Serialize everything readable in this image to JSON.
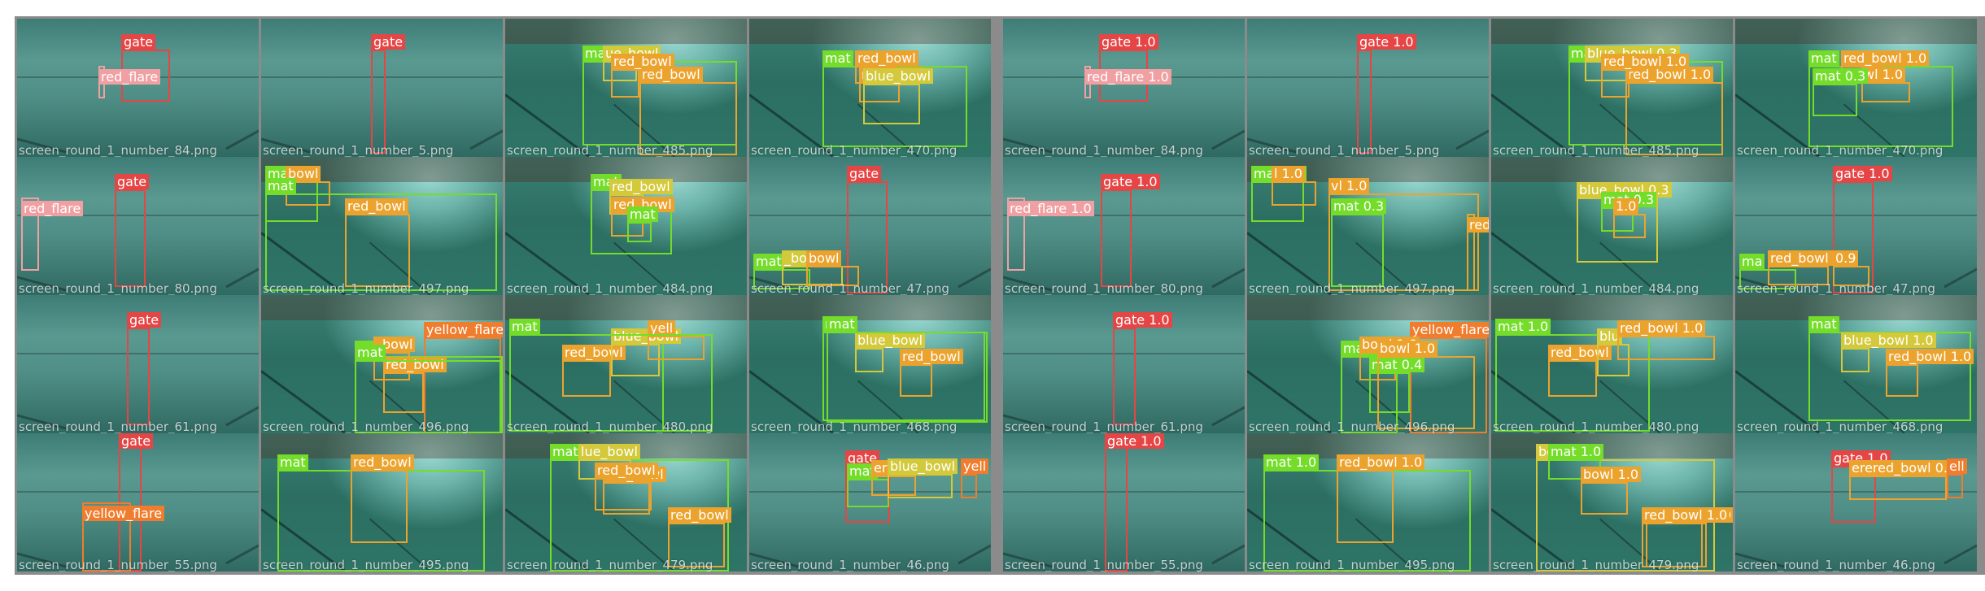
{
  "colors": {
    "gate": "#e64545",
    "red_flare": "#f0a0a3",
    "mat": "#74dd2a",
    "blue_bowl": "#d3c93a",
    "red_bowl": "#eca32e",
    "yellow_flare": "#f07c2e",
    "water": "#2f6e66"
  },
  "panels": {
    "labels": {
      "tiles": [
        {
          "filename": "screen_round_1_number_84.png",
          "scene": "pool",
          "objects": [
            {
              "cls": "gate",
              "label": "gate"
            },
            {
              "cls": "red_flare",
              "label": "red_flare"
            }
          ]
        },
        {
          "filename": "screen_round_1_number_5.png",
          "scene": "pool",
          "objects": [
            {
              "cls": "gate",
              "label": "gate"
            }
          ]
        },
        {
          "filename": "screen_round_1_number_485.png",
          "scene": "tiled",
          "objects": [
            {
              "cls": "mat",
              "label": "mat"
            },
            {
              "cls": "blue_bowl",
              "label": "ue_bowl"
            },
            {
              "cls": "red_bowl",
              "label": "red_bowl"
            },
            {
              "cls": "red_bowl",
              "label": "red_bowl"
            }
          ]
        },
        {
          "filename": "screen_round_1_number_470.png",
          "scene": "tiled",
          "objects": [
            {
              "cls": "mat",
              "label": "mat"
            },
            {
              "cls": "red_bowl",
              "label": "red_bowl"
            },
            {
              "cls": "red_bowl",
              "label": "red_bowl"
            },
            {
              "cls": "blue_bowl",
              "label": "blue_bowl"
            }
          ]
        },
        {
          "filename": "screen_round_1_number_80.png",
          "scene": "pool",
          "objects": [
            {
              "cls": "red_flare",
              "label": "red_flare"
            },
            {
              "cls": "gate",
              "label": "gate"
            }
          ]
        },
        {
          "filename": "screen_round_1_number_497.png",
          "scene": "tiled",
          "objects": [
            {
              "cls": "mat",
              "label": "mat"
            },
            {
              "cls": "red_bowl",
              "label": "bowl"
            },
            {
              "cls": "red_bowl",
              "label": "red_bowl"
            },
            {
              "cls": "mat",
              "label": "mat"
            }
          ]
        },
        {
          "filename": "screen_round_1_number_484.png",
          "scene": "tiled",
          "objects": [
            {
              "cls": "mat",
              "label": "mat"
            },
            {
              "cls": "blue_bowl",
              "label": "red_bowl"
            },
            {
              "cls": "red_bowl",
              "label": "red_bowl"
            },
            {
              "cls": "mat",
              "label": "mat"
            }
          ]
        },
        {
          "filename": "screen_round_1_number_47.png",
          "scene": "pool",
          "objects": [
            {
              "cls": "gate",
              "label": "gate"
            },
            {
              "cls": "mat",
              "label": "mat"
            },
            {
              "cls": "blue_bowl",
              "label": "_bowl"
            },
            {
              "cls": "red_bowl",
              "label": "bowl"
            }
          ]
        },
        {
          "filename": "screen_round_1_number_61.png",
          "scene": "pool",
          "objects": [
            {
              "cls": "gate",
              "label": "gate"
            }
          ]
        },
        {
          "filename": "screen_round_1_number_496.png",
          "scene": "tiled",
          "objects": [
            {
              "cls": "yellow_flare",
              "label": "yellow_flare"
            },
            {
              "cls": "mat",
              "label": "mat"
            },
            {
              "cls": "red_bowl",
              "label": "_bowl"
            },
            {
              "cls": "red_bowl",
              "label": "red_bowl"
            },
            {
              "cls": "mat",
              "label": "mat"
            }
          ]
        },
        {
          "filename": "screen_round_1_number_480.png",
          "scene": "tiled",
          "objects": [
            {
              "cls": "mat",
              "label": "mat"
            },
            {
              "cls": "red_bowl",
              "label": "red_bowl"
            },
            {
              "cls": "blue_bowl",
              "label": "blue_bowl"
            },
            {
              "cls": "red_bowl",
              "label": "yell"
            },
            {
              "cls": "mat",
              "label": "mat"
            }
          ]
        },
        {
          "filename": "screen_round_1_number_468.png",
          "scene": "tiled",
          "objects": [
            {
              "cls": "mat",
              "label": "mat"
            },
            {
              "cls": "blue_bowl",
              "label": "blue_bowl"
            },
            {
              "cls": "red_bowl",
              "label": "red_bowl"
            },
            {
              "cls": "mat",
              "label": "mat"
            }
          ]
        },
        {
          "filename": "screen_round_1_number_55.png",
          "scene": "pool",
          "objects": [
            {
              "cls": "gate",
              "label": "gate"
            },
            {
              "cls": "yellow_flare",
              "label": "yellow_flare"
            }
          ]
        },
        {
          "filename": "screen_round_1_number_495.png",
          "scene": "tiled",
          "objects": [
            {
              "cls": "mat",
              "label": "mat"
            },
            {
              "cls": "red_bowl",
              "label": "red_bowl"
            }
          ]
        },
        {
          "filename": "screen_round_1_number_479.png",
          "scene": "tiled",
          "objects": [
            {
              "cls": "mat",
              "label": "mat"
            },
            {
              "cls": "blue_bowl",
              "label": "lue_bowl"
            },
            {
              "cls": "red_bowl",
              "label": "red_bowl"
            },
            {
              "cls": "red_bowl",
              "label": "red_bowl"
            },
            {
              "cls": "red_bowl",
              "label": "red_bowl"
            }
          ]
        },
        {
          "filename": "screen_round_1_number_46.png",
          "scene": "pool",
          "objects": [
            {
              "cls": "gate",
              "label": "gate"
            },
            {
              "cls": "mat",
              "label": "mat"
            },
            {
              "cls": "red_bowl",
              "label": "ere"
            },
            {
              "cls": "blue_bowl",
              "label": "blue_bowl"
            },
            {
              "cls": "yellow_flare",
              "label": "yell"
            }
          ]
        }
      ]
    },
    "predictions": {
      "tiles": [
        {
          "filename": "screen_round_1_number_84.png",
          "scene": "pool",
          "objects": [
            {
              "cls": "gate",
              "label": "gate 1.0"
            },
            {
              "cls": "red_flare",
              "label": "red_flare 1.0"
            }
          ]
        },
        {
          "filename": "screen_round_1_number_5.png",
          "scene": "pool",
          "objects": [
            {
              "cls": "gate",
              "label": "gate 1.0"
            }
          ]
        },
        {
          "filename": "screen_round_1_number_485.png",
          "scene": "tiled",
          "objects": [
            {
              "cls": "mat",
              "label": "ma"
            },
            {
              "cls": "blue_bowl",
              "label": "blue_bowl 0.3"
            },
            {
              "cls": "red_bowl",
              "label": "red_bowl 1.0"
            },
            {
              "cls": "red_bowl",
              "label": "red_bowl 1.0"
            }
          ]
        },
        {
          "filename": "screen_round_1_number_470.png",
          "scene": "tiled",
          "objects": [
            {
              "cls": "mat",
              "label": "mat"
            },
            {
              "cls": "red_bowl",
              "label": "red_bowl 1.0"
            },
            {
              "cls": "red_bowl",
              "label": "wl 1.0"
            },
            {
              "cls": "mat",
              "label": "mat 0.3"
            }
          ]
        },
        {
          "filename": "screen_round_1_number_80.png",
          "scene": "pool",
          "objects": [
            {
              "cls": "red_flare",
              "label": "red_flare 1.0"
            },
            {
              "cls": "gate",
              "label": "gate 1.0"
            }
          ]
        },
        {
          "filename": "screen_round_1_number_497.png",
          "scene": "tiled",
          "objects": [
            {
              "cls": "mat",
              "label": "mat 0.9"
            },
            {
              "cls": "red_bowl",
              "label": "l 1.0"
            },
            {
              "cls": "mat",
              "label": "mat 0.3"
            },
            {
              "cls": "red_bowl",
              "label": "vl 1.0"
            },
            {
              "cls": "red_bowl",
              "label": "red_bowl 0.3"
            }
          ]
        },
        {
          "filename": "screen_round_1_number_484.png",
          "scene": "tiled",
          "objects": [
            {
              "cls": "blue_bowl",
              "label": "blue_bowl 0.3"
            },
            {
              "cls": "mat",
              "label": "mat 0.3"
            },
            {
              "cls": "red_bowl",
              "label": "1.0"
            }
          ]
        },
        {
          "filename": "screen_round_1_number_47.png",
          "scene": "pool",
          "objects": [
            {
              "cls": "gate",
              "label": "gate 1.0"
            },
            {
              "cls": "mat",
              "label": "ma"
            },
            {
              "cls": "red_bowl",
              "label": "red_bowl 0.4"
            },
            {
              "cls": "red_bowl",
              "label": "0.9"
            }
          ]
        },
        {
          "filename": "screen_round_1_number_61.png",
          "scene": "pool",
          "objects": [
            {
              "cls": "gate",
              "label": "gate 1.0"
            }
          ]
        },
        {
          "filename": "screen_round_1_number_496.png",
          "scene": "tiled",
          "objects": [
            {
              "cls": "yellow_flare",
              "label": "yellow_flare 0.9"
            },
            {
              "cls": "mat",
              "label": "mat 1.0"
            },
            {
              "cls": "red_bowl",
              "label": "bowl 1.0"
            },
            {
              "cls": "mat",
              "label": "mat 0.4"
            },
            {
              "cls": "red_bowl",
              "label": "bowl 1.0"
            }
          ]
        },
        {
          "filename": "screen_round_1_number_480.png",
          "scene": "tiled",
          "objects": [
            {
              "cls": "mat",
              "label": "mat 1.0"
            },
            {
              "cls": "red_bowl",
              "label": "red_bowl"
            },
            {
              "cls": "blue_bowl",
              "label": "blu"
            },
            {
              "cls": "red_bowl",
              "label": "red_bowl 1.0"
            }
          ]
        },
        {
          "filename": "screen_round_1_number_468.png",
          "scene": "tiled",
          "objects": [
            {
              "cls": "mat",
              "label": "mat"
            },
            {
              "cls": "blue_bowl",
              "label": "blue_bowl 1.0"
            },
            {
              "cls": "red_bowl",
              "label": "red_bowl 1.0"
            }
          ]
        },
        {
          "filename": "screen_round_1_number_55.png",
          "scene": "pool",
          "objects": [
            {
              "cls": "gate",
              "label": "gate 1.0"
            }
          ]
        },
        {
          "filename": "screen_round_1_number_495.png",
          "scene": "tiled",
          "objects": [
            {
              "cls": "mat",
              "label": "mat 1.0"
            },
            {
              "cls": "red_bowl",
              "label": "red_bowl 1.0"
            }
          ]
        },
        {
          "filename": "screen_round_1_number_479.png",
          "scene": "tiled",
          "objects": [
            {
              "cls": "blue_bowl",
              "label": "bowl 1.0"
            },
            {
              "cls": "mat",
              "label": "mat 1.0"
            },
            {
              "cls": "red_bowl",
              "label": "bowl 1.0"
            },
            {
              "cls": "red_bowl",
              "label": "red_bowl 1.0"
            },
            {
              "cls": "red_bowl",
              "label": "red_bowl 1.0"
            }
          ]
        },
        {
          "filename": "screen_round_1_number_46.png",
          "scene": "pool",
          "objects": [
            {
              "cls": "gate",
              "label": "gate 1.0"
            },
            {
              "cls": "red_bowl",
              "label": "erered_bowl 0.4"
            },
            {
              "cls": "yellow_flare",
              "label": "ell"
            }
          ]
        }
      ]
    }
  }
}
